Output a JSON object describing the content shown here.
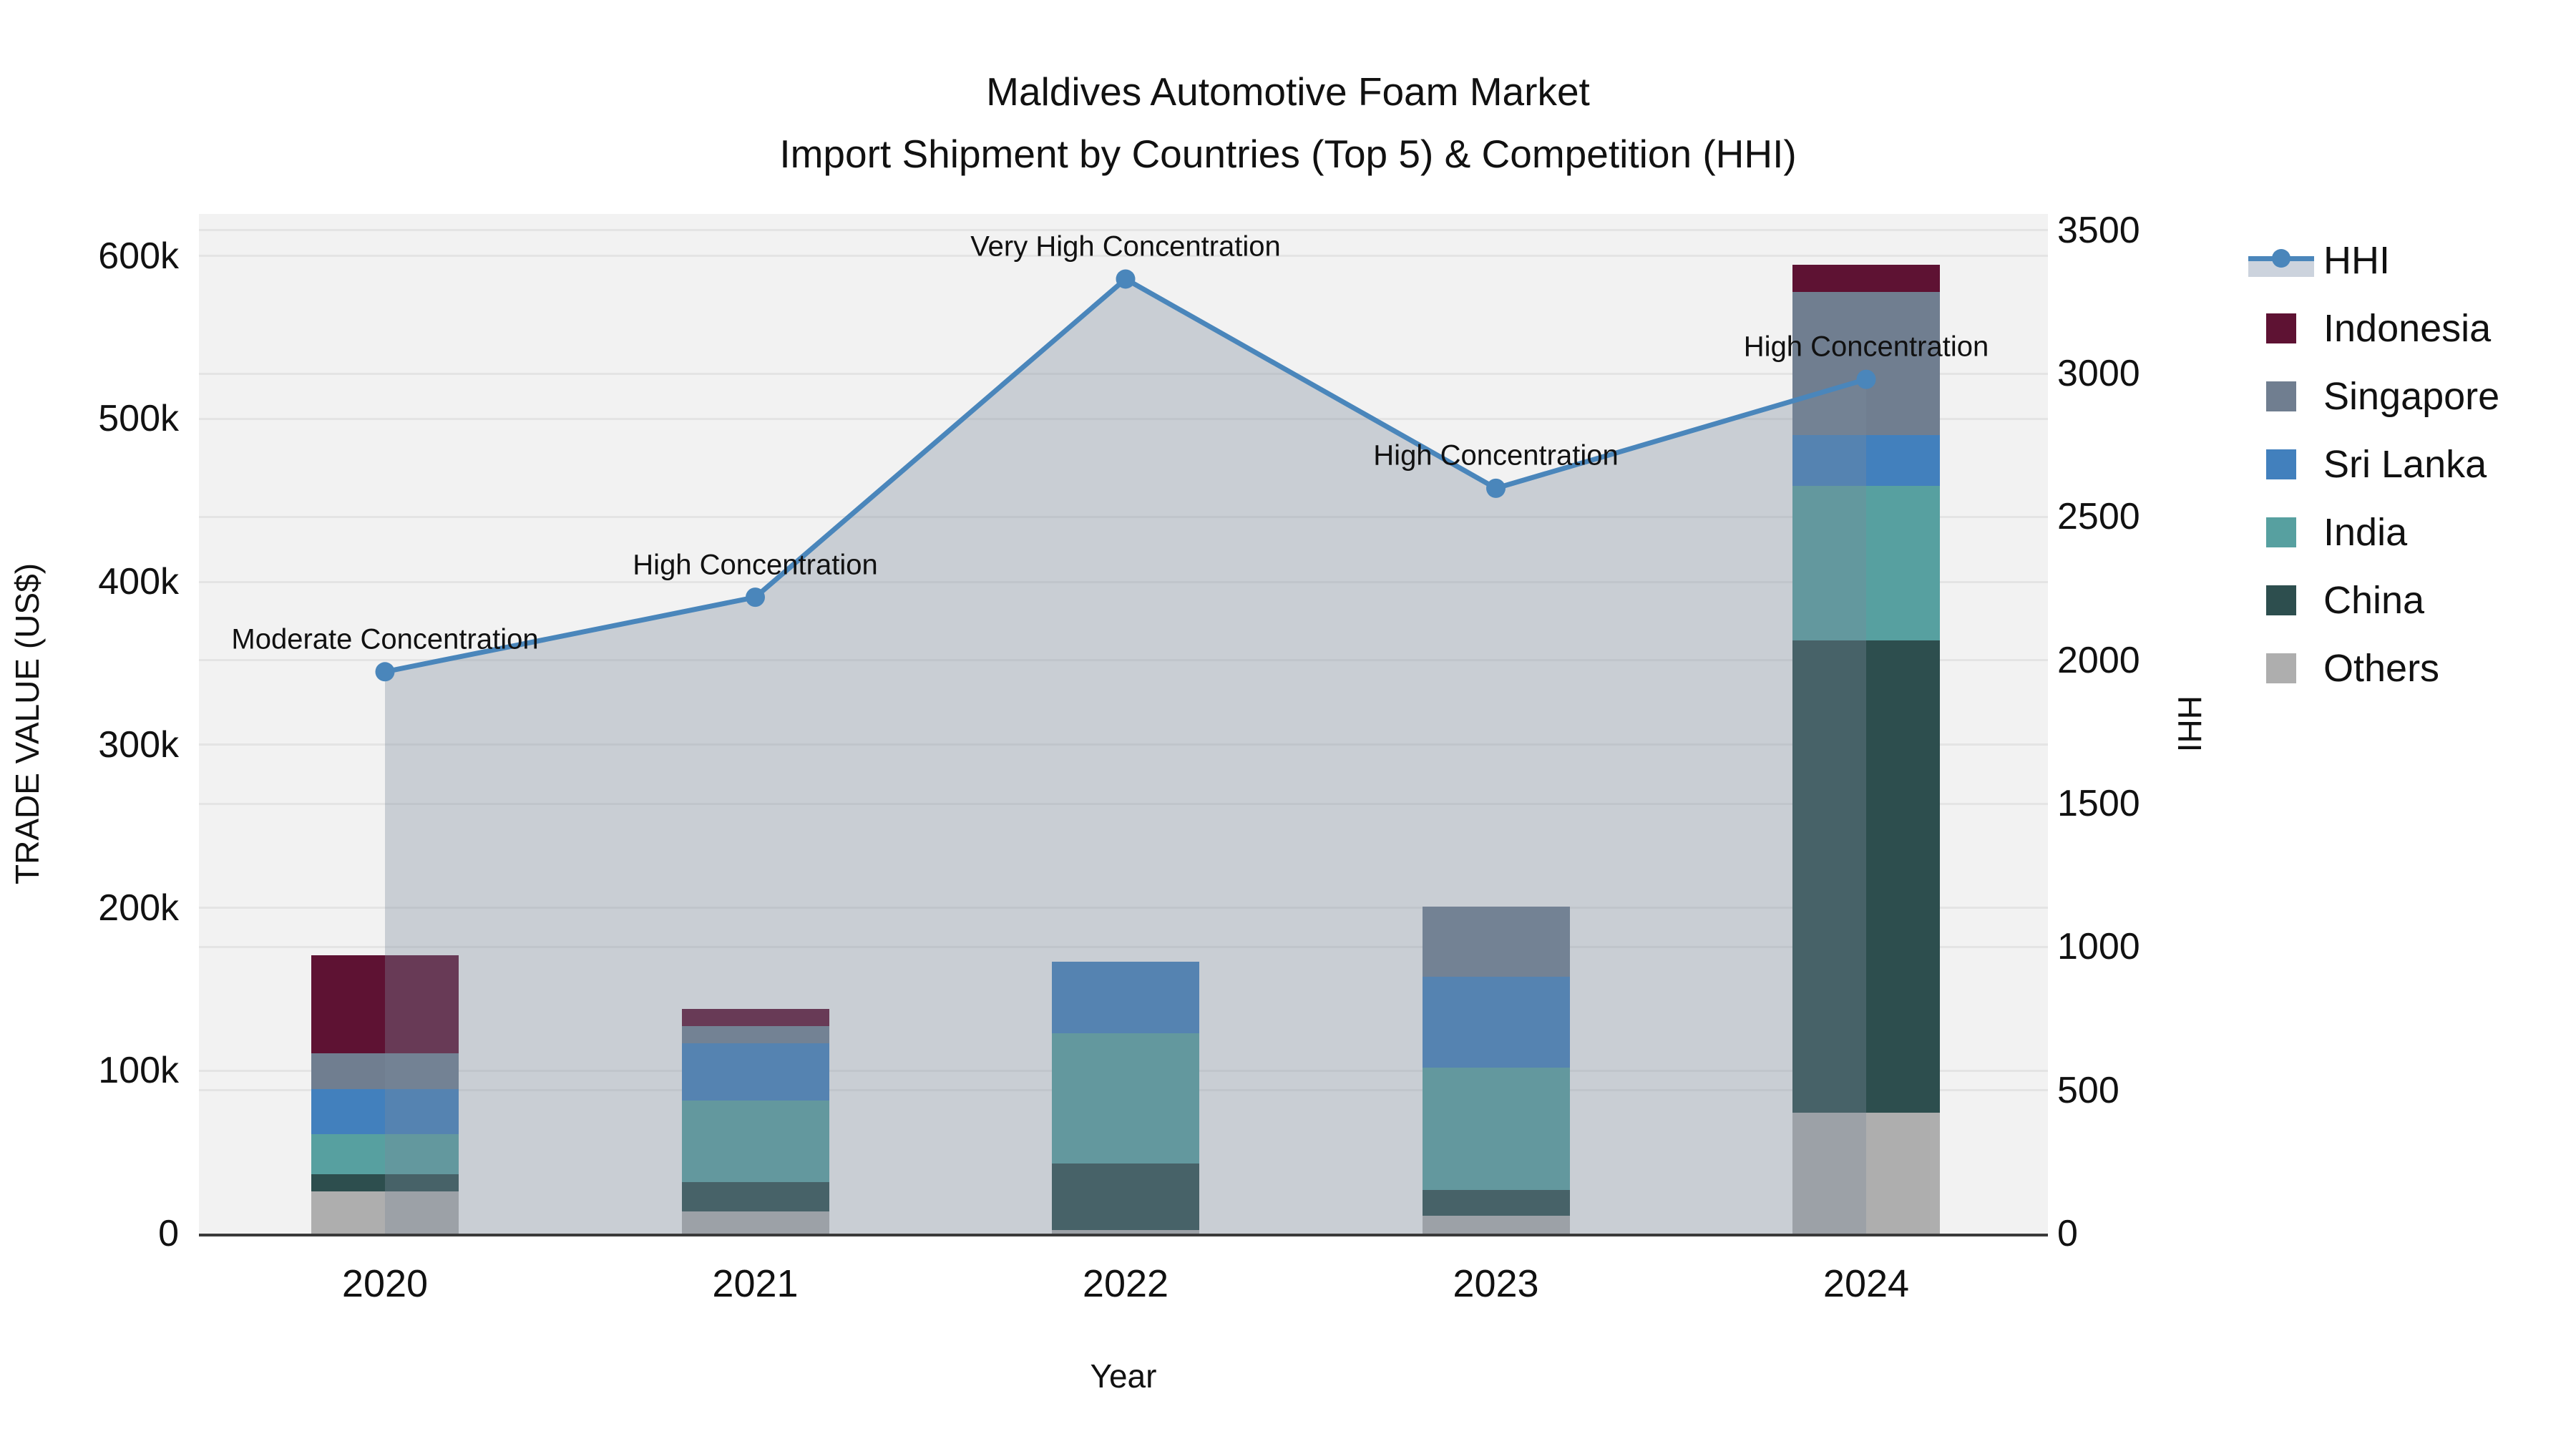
{
  "title": {
    "line1": "Maldives Automotive Foam Market",
    "line2": "Import Shipment by Countries (Top 5) & Competition (HHI)"
  },
  "axes": {
    "x": {
      "label": "Year",
      "ticks": [
        "2020",
        "2021",
        "2022",
        "2023",
        "2024"
      ]
    },
    "left": {
      "label": "TRADE VALUE (US$)",
      "ticks": [
        {
          "value": 0,
          "label": "0"
        },
        {
          "value": 100000,
          "label": "100k"
        },
        {
          "value": 200000,
          "label": "200k"
        },
        {
          "value": 300000,
          "label": "300k"
        },
        {
          "value": 400000,
          "label": "400k"
        },
        {
          "value": 500000,
          "label": "500k"
        },
        {
          "value": 600000,
          "label": "600k"
        }
      ]
    },
    "right": {
      "label": "HHI",
      "ticks": [
        {
          "value": 0,
          "label": "0"
        },
        {
          "value": 500,
          "label": "500"
        },
        {
          "value": 1000,
          "label": "1000"
        },
        {
          "value": 1500,
          "label": "1500"
        },
        {
          "value": 2000,
          "label": "2000"
        },
        {
          "value": 2500,
          "label": "2500"
        },
        {
          "value": 3000,
          "label": "3000"
        },
        {
          "value": 3500,
          "label": "3500"
        }
      ]
    }
  },
  "legend": [
    {
      "label": "HHI",
      "type": "line",
      "color": "#4a86bb"
    },
    {
      "label": "Indonesia",
      "type": "square",
      "color": "#5e1233"
    },
    {
      "label": "Singapore",
      "type": "square",
      "color": "#707e90"
    },
    {
      "label": "Sri Lanka",
      "type": "square",
      "color": "#4280bd"
    },
    {
      "label": "India",
      "type": "square",
      "color": "#57a0a0"
    },
    {
      "label": "China",
      "type": "square",
      "color": "#2d4e4e"
    },
    {
      "label": "Others",
      "type": "square",
      "color": "#aeaeae"
    }
  ],
  "colors": {
    "hhi_line": "#4a86bb",
    "hhi_area_fill": "rgba(124,139,154,0.34)",
    "plot_background": "#f2f2f2",
    "gridline": "#e4e4e4",
    "axis_line": "#3a3a3a"
  },
  "chart_data": {
    "type": "bar",
    "stacked": true,
    "title": "Maldives Automotive Foam Market — Import Shipment by Countries (Top 5) & Competition (HHI)",
    "xlabel": "Year",
    "ylabel": "TRADE VALUE (US$)",
    "ylabel_right": "HHI",
    "categories": [
      "2020",
      "2021",
      "2022",
      "2023",
      "2024"
    ],
    "series": [
      {
        "name": "Indonesia",
        "color": "#5e1233",
        "values": [
          60500,
          10500,
          0,
          0,
          16500
        ]
      },
      {
        "name": "Singapore",
        "color": "#707e90",
        "values": [
          22000,
          10500,
          0,
          43000,
          88000
        ]
      },
      {
        "name": "Sri Lanka",
        "color": "#4280bd",
        "values": [
          27500,
          35500,
          44000,
          55500,
          31000
        ]
      },
      {
        "name": "India",
        "color": "#57a0a0",
        "values": [
          24500,
          50000,
          80000,
          75000,
          95000
        ]
      },
      {
        "name": "China",
        "color": "#2d4e4e",
        "values": [
          10500,
          18000,
          41000,
          16000,
          290000
        ]
      },
      {
        "name": "Others",
        "color": "#aeaeae",
        "values": [
          26000,
          13500,
          2000,
          11000,
          74000
        ]
      }
    ],
    "bar_totals": [
      171000,
      138000,
      167000,
      200500,
      594500
    ],
    "line_series": {
      "name": "HHI",
      "color": "#4a86bb",
      "yaxis": "right",
      "area_fill": true,
      "values": [
        1960,
        2220,
        3330,
        2600,
        2980
      ],
      "annotations": [
        "Moderate Concentration",
        "High Concentration",
        "Very High Concentration",
        "High Concentration",
        "High Concentration"
      ]
    },
    "ylim": [
      0,
      625800
    ],
    "ylim_right": [
      0,
      3557
    ],
    "grid": true,
    "legend_position": "right",
    "stack_order_bottom_to_top": [
      "Others",
      "China",
      "India",
      "Sri Lanka",
      "Singapore",
      "Indonesia"
    ]
  }
}
